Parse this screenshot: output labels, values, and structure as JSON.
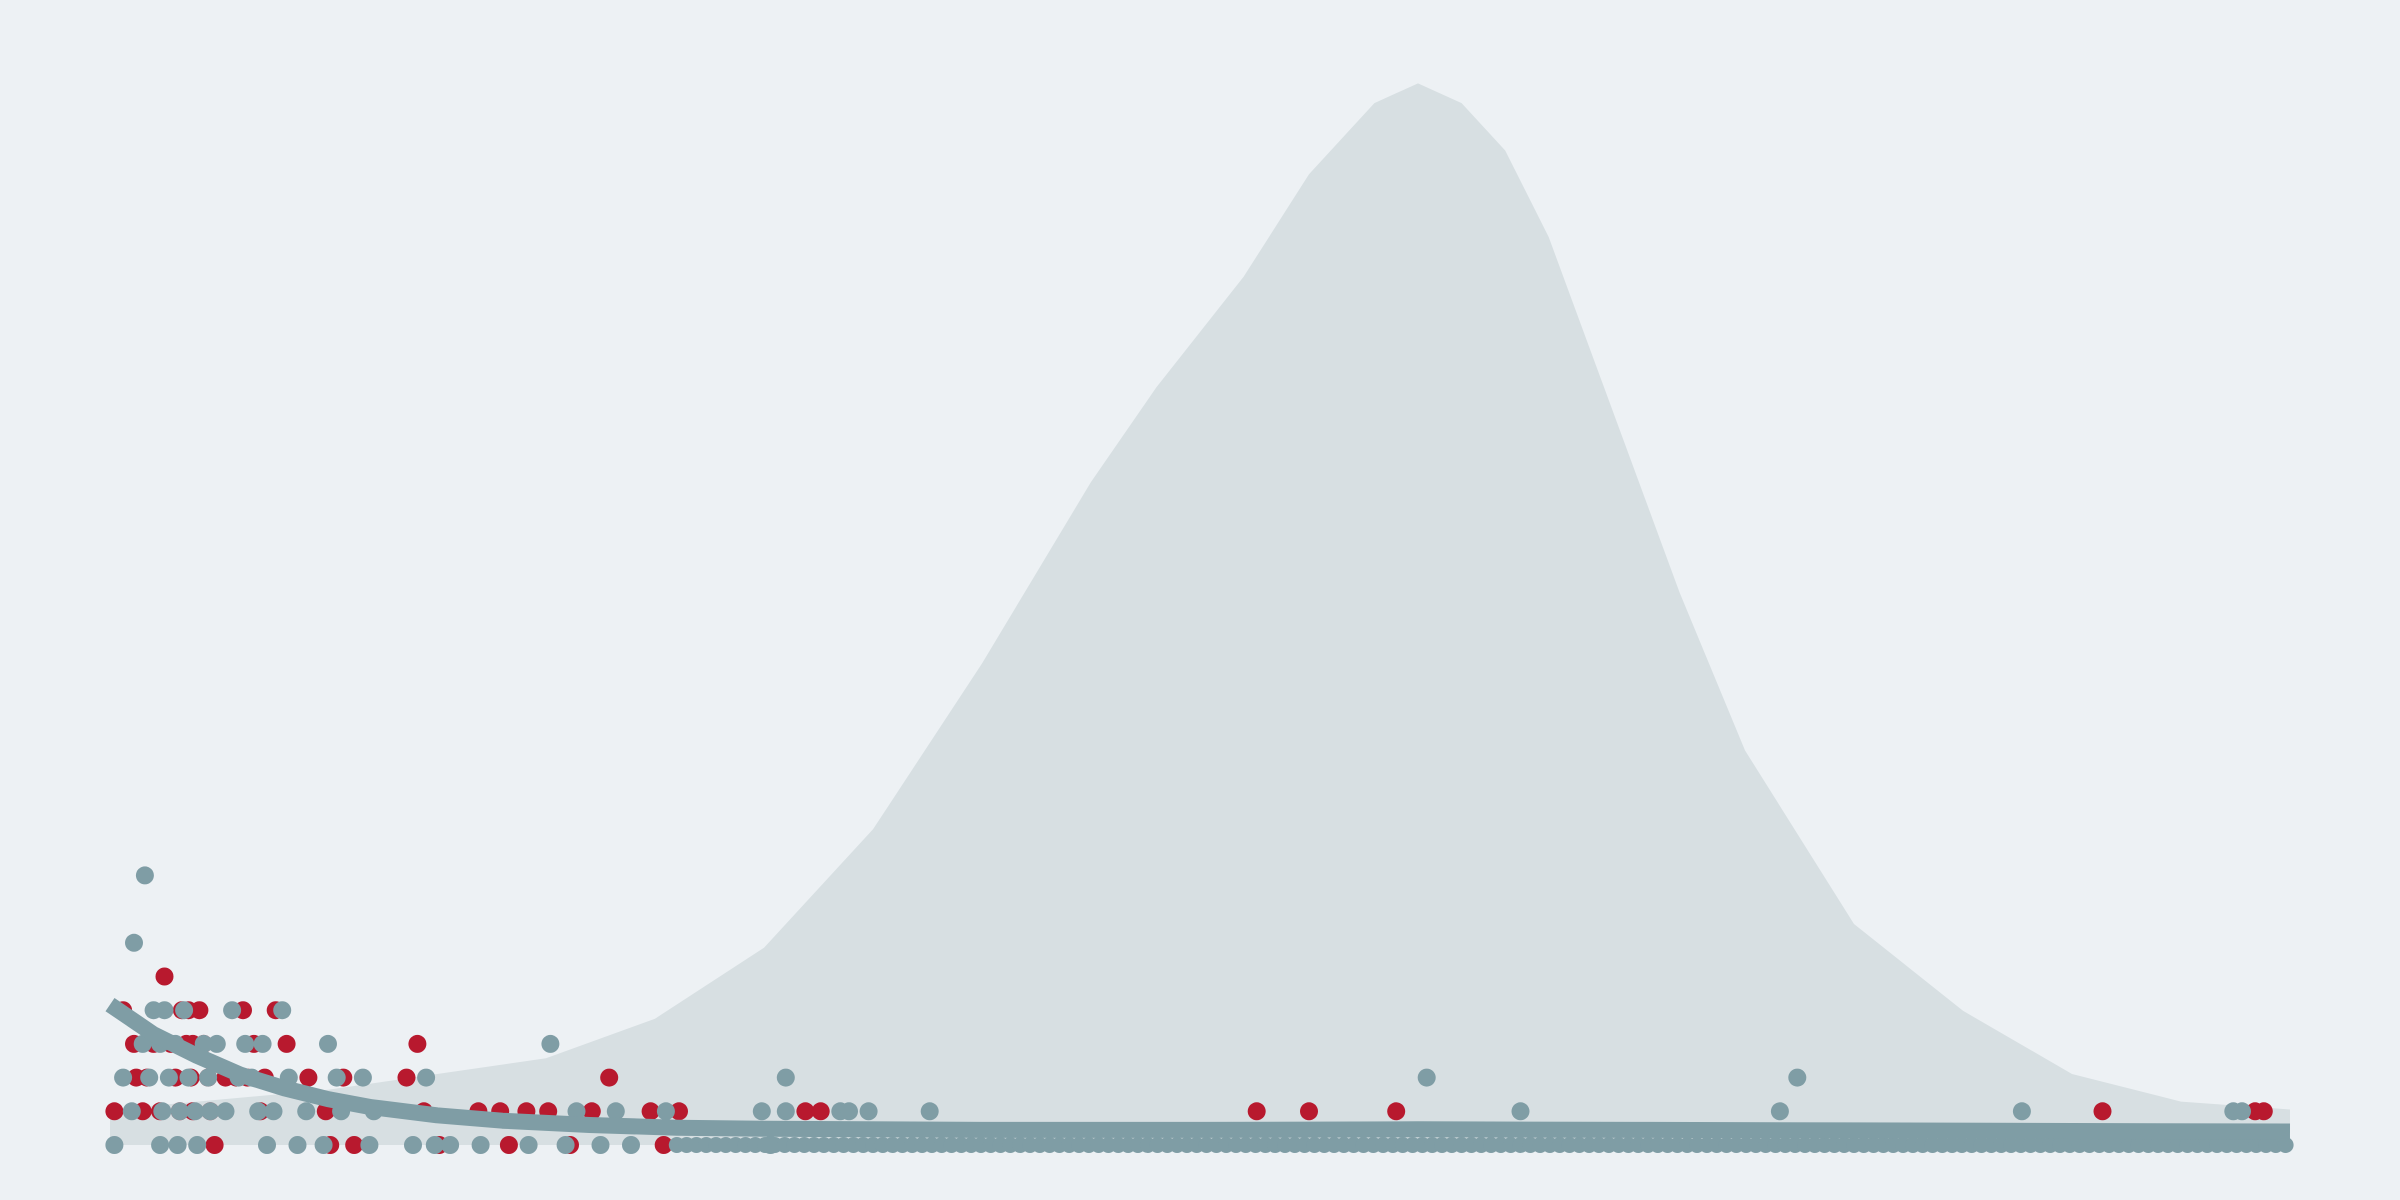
{
  "chart_data": {
    "type": "scatter",
    "title": "",
    "xlabel": "",
    "ylabel": "",
    "grid": false,
    "xlim": [
      0,
      100
    ],
    "ylim": [
      0,
      14
    ],
    "colors": {
      "background": "#edf1f4",
      "density": "#d7dfe2",
      "series_a": "#b8192e",
      "series_b": "#7f9da5",
      "trend": "#7f9da5"
    },
    "density_curve": {
      "x": [
        0,
        10,
        20,
        25,
        30,
        35,
        40,
        45,
        48,
        52,
        55,
        58,
        60,
        62,
        64,
        66,
        68,
        70,
        72,
        75,
        80,
        85,
        90,
        95,
        100
      ],
      "y": [
        0.45,
        0.7,
        1.1,
        1.6,
        2.5,
        4.0,
        6.1,
        8.4,
        9.6,
        11.0,
        12.3,
        13.2,
        13.45,
        13.2,
        12.6,
        11.5,
        10.0,
        8.5,
        7.0,
        5.0,
        2.8,
        1.7,
        0.9,
        0.55,
        0.45
      ]
    },
    "trend_line": {
      "x": [
        0,
        2,
        4,
        6,
        8,
        10,
        12,
        15,
        18,
        22,
        26,
        30,
        40,
        50,
        60,
        70,
        80,
        90,
        100
      ],
      "y": [
        2.6,
        2.05,
        1.65,
        1.3,
        1.05,
        0.85,
        0.7,
        0.55,
        0.45,
        0.37,
        0.32,
        0.3,
        0.28,
        0.28,
        0.29,
        0.28,
        0.27,
        0.26,
        0.25
      ]
    },
    "series": [
      {
        "color": "#b8192e",
        "points": [
          [
            0.2,
            1
          ],
          [
            0.6,
            4
          ],
          [
            1.1,
            3
          ],
          [
            1.2,
            2
          ],
          [
            1.5,
            1
          ],
          [
            1.7,
            2
          ],
          [
            2.0,
            3
          ],
          [
            2.3,
            1
          ],
          [
            2.5,
            5
          ],
          [
            2.8,
            3
          ],
          [
            3.0,
            2
          ],
          [
            3.2,
            1
          ],
          [
            3.3,
            4
          ],
          [
            3.5,
            3
          ],
          [
            3.7,
            2
          ],
          [
            3.8,
            1
          ],
          [
            3.6,
            4
          ],
          [
            3.8,
            3
          ],
          [
            4.1,
            4
          ],
          [
            4.3,
            3
          ],
          [
            4.5,
            2
          ],
          [
            4.6,
            1
          ],
          [
            4.8,
            0
          ],
          [
            5.3,
            2
          ],
          [
            5.8,
            2
          ],
          [
            6.1,
            4
          ],
          [
            6.3,
            2
          ],
          [
            6.6,
            3
          ],
          [
            6.9,
            1
          ],
          [
            7.1,
            2
          ],
          [
            7.6,
            4
          ],
          [
            8.1,
            3
          ],
          [
            9.1,
            2
          ],
          [
            9.9,
            1
          ],
          [
            10.1,
            0
          ],
          [
            10.7,
            2
          ],
          [
            11.2,
            0
          ],
          [
            13.6,
            2
          ],
          [
            14.1,
            3
          ],
          [
            14.4,
            1
          ],
          [
            15.1,
            0
          ],
          [
            16.9,
            1
          ],
          [
            17.9,
            1
          ],
          [
            18.3,
            0
          ],
          [
            19.1,
            1
          ],
          [
            20.1,
            1
          ],
          [
            21.1,
            0
          ],
          [
            22.1,
            1
          ],
          [
            22.9,
            2
          ],
          [
            24.8,
            1
          ],
          [
            25.4,
            0
          ],
          [
            26.1,
            1
          ],
          [
            31.9,
            1
          ],
          [
            32.6,
            1
          ],
          [
            52.6,
            1
          ],
          [
            55.0,
            1
          ],
          [
            59.0,
            1
          ],
          [
            91.4,
            1
          ],
          [
            98.4,
            1
          ],
          [
            98.8,
            1
          ]
        ]
      },
      {
        "color": "#7f9da5",
        "points": [
          [
            0.2,
            0
          ],
          [
            0.6,
            2
          ],
          [
            1.0,
            1
          ],
          [
            1.1,
            6
          ],
          [
            1.5,
            3
          ],
          [
            1.6,
            8
          ],
          [
            1.8,
            2
          ],
          [
            2.0,
            4
          ],
          [
            2.3,
            3
          ],
          [
            2.5,
            4
          ],
          [
            2.4,
            1
          ],
          [
            2.3,
            0
          ],
          [
            2.7,
            2
          ],
          [
            3.0,
            3
          ],
          [
            3.1,
            0
          ],
          [
            3.2,
            1
          ],
          [
            3.4,
            4
          ],
          [
            3.6,
            2
          ],
          [
            3.9,
            1
          ],
          [
            4.0,
            0
          ],
          [
            4.3,
            3
          ],
          [
            4.5,
            2
          ],
          [
            4.6,
            1
          ],
          [
            4.9,
            3
          ],
          [
            5.3,
            1
          ],
          [
            5.6,
            4
          ],
          [
            5.9,
            2
          ],
          [
            6.2,
            3
          ],
          [
            6.5,
            2
          ],
          [
            6.8,
            1
          ],
          [
            7.0,
            3
          ],
          [
            7.2,
            0
          ],
          [
            7.5,
            1
          ],
          [
            7.9,
            4
          ],
          [
            8.2,
            2
          ],
          [
            8.6,
            0
          ],
          [
            9.0,
            1
          ],
          [
            9.8,
            0
          ],
          [
            10.0,
            3
          ],
          [
            10.4,
            2
          ],
          [
            10.6,
            1
          ],
          [
            11.6,
            2
          ],
          [
            11.9,
            0
          ],
          [
            12.1,
            1
          ],
          [
            13.9,
            0
          ],
          [
            14.5,
            2
          ],
          [
            14.9,
            0
          ],
          [
            15.6,
            0
          ],
          [
            17.0,
            0
          ],
          [
            19.2,
            0
          ],
          [
            20.9,
            0
          ],
          [
            21.4,
            1
          ],
          [
            20.2,
            3
          ],
          [
            22.5,
            0
          ],
          [
            23.2,
            1
          ],
          [
            23.9,
            0
          ],
          [
            25.5,
            1
          ],
          [
            29.9,
            1
          ],
          [
            30.3,
            0
          ],
          [
            31.0,
            2
          ],
          [
            31.0,
            1
          ],
          [
            33.5,
            1
          ],
          [
            33.9,
            1
          ],
          [
            34.8,
            1
          ],
          [
            37.6,
            1
          ],
          [
            60.4,
            2
          ],
          [
            64.7,
            1
          ],
          [
            76.6,
            1
          ],
          [
            77.4,
            2
          ],
          [
            87.7,
            1
          ],
          [
            97.4,
            1
          ],
          [
            97.8,
            1
          ]
        ]
      }
    ]
  }
}
